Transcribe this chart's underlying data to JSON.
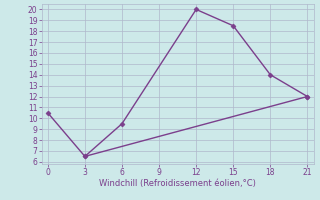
{
  "line1_x": [
    0,
    3,
    6,
    12,
    15,
    18,
    21
  ],
  "line1_y": [
    10.5,
    6.5,
    9.5,
    20.0,
    18.5,
    14.0,
    12.0
  ],
  "line2_x": [
    3,
    21
  ],
  "line2_y": [
    6.5,
    12.0
  ],
  "line_color": "#7b3f8c",
  "bg_color": "#cde9e9",
  "grid_color": "#b0b8cc",
  "xlabel": "Windchill (Refroidissement éolien,°C)",
  "xlabel_color": "#7b3f8c",
  "xlim": [
    -0.5,
    21.5
  ],
  "ylim": [
    5.8,
    20.5
  ],
  "xticks": [
    0,
    3,
    6,
    9,
    12,
    15,
    18,
    21
  ],
  "yticks": [
    6,
    7,
    8,
    9,
    10,
    11,
    12,
    13,
    14,
    15,
    16,
    17,
    18,
    19,
    20
  ],
  "tick_color": "#7b3f8c",
  "marker": "D",
  "markersize": 2.5,
  "linewidth": 1.0,
  "tick_fontsize": 5.5,
  "xlabel_fontsize": 6.0
}
